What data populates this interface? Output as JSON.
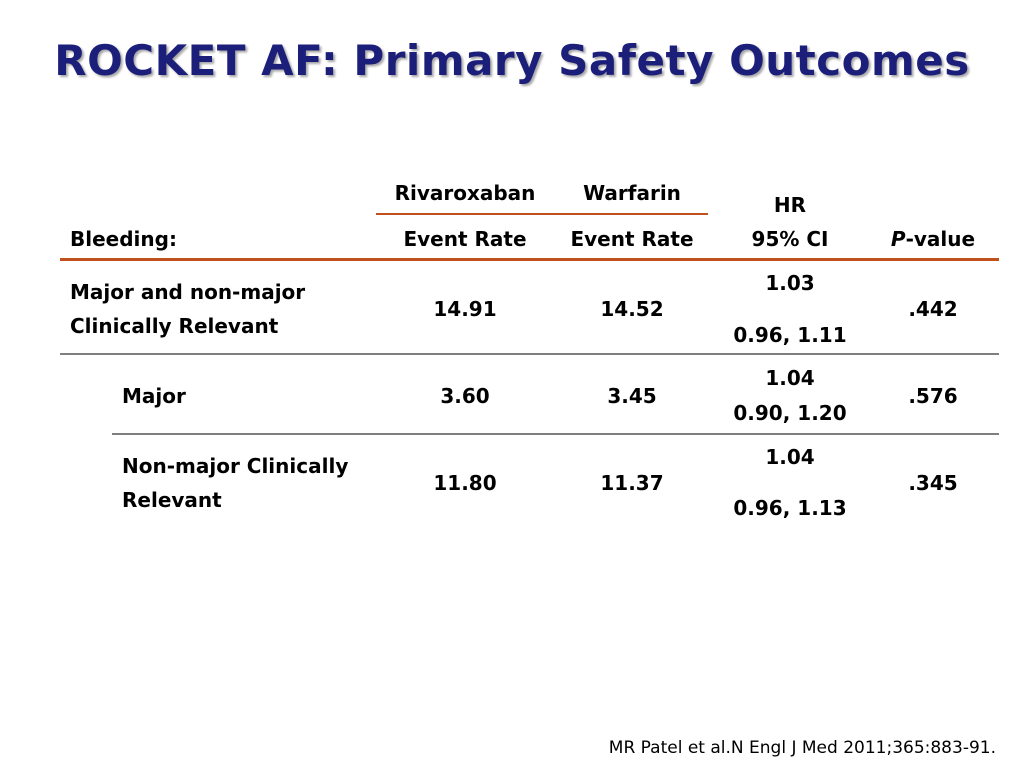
{
  "title": "ROCKET AF: Primary Safety Outcomes",
  "table": {
    "header": {
      "row_label": "Bleeding:",
      "rivaroxaban": "Rivaroxaban",
      "warfarin": "Warfarin",
      "event_rate_1": "Event Rate",
      "event_rate_2": "Event Rate",
      "hr": "HR",
      "ci": "95% CI",
      "p_italic": "P",
      "p_rest": "-value"
    },
    "rows": [
      {
        "label_line1": "Major and non-major",
        "label_line2": "Clinically Relevant",
        "rivaroxaban": "14.91",
        "warfarin": "14.52",
        "hr": "1.03",
        "ci": "0.96, 1.11",
        "p": ".442"
      },
      {
        "label_line1": "Major",
        "rivaroxaban": "3.60",
        "warfarin": "3.45",
        "hr": "1.04",
        "ci": "0.90, 1.20",
        "p": ".576"
      },
      {
        "label_line1": "Non-major Clinically",
        "label_line2": "Relevant",
        "rivaroxaban": "11.80",
        "warfarin": "11.37",
        "hr": "1.04",
        "ci": "0.96, 1.13",
        "p": ".345"
      }
    ]
  },
  "citation": "MR Patel et al.N Engl J Med 2011;365:883-91.",
  "colors": {
    "title": "#1c1f7a",
    "accent_rule": "#c0501e",
    "divider": "#7f7f7f"
  }
}
